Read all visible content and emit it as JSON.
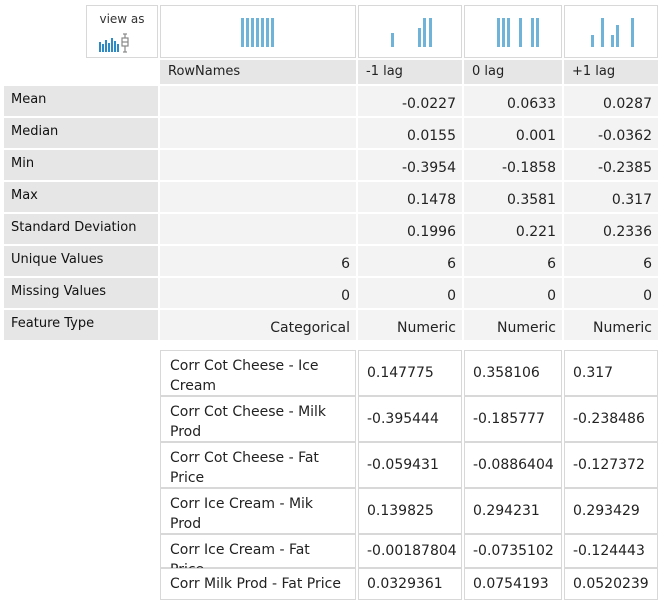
{
  "view_as": {
    "label": "view as"
  },
  "columns": [
    "RowNames",
    "-1 lag",
    "0 lag",
    "+1 lag"
  ],
  "stats": [
    {
      "label": "Mean",
      "values": [
        "",
        "-0.0227",
        "0.0633",
        "0.0287"
      ]
    },
    {
      "label": "Median",
      "values": [
        "",
        "0.0155",
        "0.001",
        "-0.0362"
      ]
    },
    {
      "label": "Min",
      "values": [
        "",
        "-0.3954",
        "-0.1858",
        "-0.2385"
      ]
    },
    {
      "label": "Max",
      "values": [
        "",
        "0.1478",
        "0.3581",
        "0.317"
      ]
    },
    {
      "label": "Standard Deviation",
      "values": [
        "",
        "0.1996",
        "0.221",
        "0.2336"
      ]
    },
    {
      "label": "Unique Values",
      "values": [
        "6",
        "6",
        "6",
        "6"
      ]
    },
    {
      "label": "Missing Values",
      "values": [
        "0",
        "0",
        "0",
        "0"
      ]
    },
    {
      "label": "Feature Type",
      "values": [
        "Categorical",
        "Numeric",
        "Numeric",
        "Numeric"
      ]
    }
  ],
  "rows": [
    {
      "label": "Corr Cot Cheese - Ice Cream",
      "values": [
        "0.147775",
        "0.358106",
        "0.317"
      ]
    },
    {
      "label": "Corr Cot Cheese - Milk Prod",
      "values": [
        "-0.395444",
        "-0.185777",
        "-0.238486"
      ]
    },
    {
      "label": "Corr Cot Cheese - Fat Price",
      "values": [
        "-0.059431",
        "-0.0886404",
        "-0.127372"
      ]
    },
    {
      "label": "Corr Ice Cream - Mik Prod",
      "values": [
        "0.139825",
        "0.294231",
        "0.293429"
      ]
    },
    {
      "label": "Corr Ice Cream - Fat Price",
      "values": [
        "-0.00187804",
        "-0.0735102",
        "-0.124443"
      ]
    },
    {
      "label": "Corr Milk Prod - Fat Price",
      "values": [
        "0.0329361",
        "0.0754193",
        "0.0520239"
      ]
    }
  ],
  "colors": {
    "bar": "#6fb3d8",
    "header_bg": "#e6e6e6",
    "cell_bg": "#f3f3f3",
    "border": "#d8d8d8"
  },
  "icons": [
    "bar-chart-icon",
    "box-plot-icon"
  ]
}
